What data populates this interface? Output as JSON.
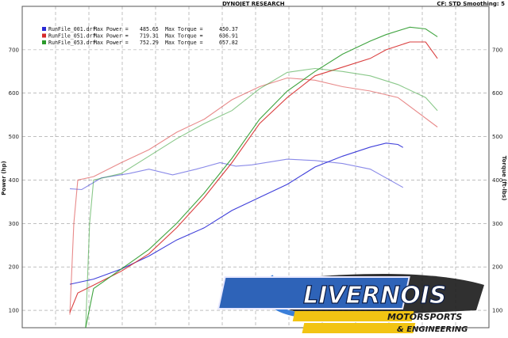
{
  "header": {
    "title": "DYNOJET RESEARCH",
    "right_text": "CF: STD  Smoothing: 5"
  },
  "logo": {
    "name": "LIVERNOIS",
    "line2": "MOTORSPORTS",
    "line3": "& ENGINEERING"
  },
  "chart_data": {
    "type": "line",
    "ylabel": "Power (hp)",
    "y2label": "Torque (ft-lbs)",
    "ylim": [
      60,
      800
    ],
    "y_ticks": [
      100,
      200,
      300,
      400,
      500,
      600,
      700
    ],
    "x_range": [
      0,
      1
    ],
    "grid": true,
    "legend_position": "top-left",
    "legend": [
      {
        "file": "RunFile_001.drf",
        "power_label": "Max Power =",
        "power": "485.65",
        "torque_label": "Max Torque =",
        "torque": "450.37",
        "color": "#2a2ad6"
      },
      {
        "file": "RunFile_051.drf",
        "power_label": "Max Power =",
        "power": "719.31",
        "torque_label": "Max Torque =",
        "torque": "636.91",
        "color": "#d62a2a"
      },
      {
        "file": "RunFile_053.drf",
        "power_label": "Max Power =",
        "power": "752.29",
        "torque_label": "Max Torque =",
        "torque": "657.82",
        "color": "#2a9a2a"
      }
    ],
    "series": [
      {
        "kind": "power",
        "run": "RunFile_001.drf",
        "color": "#2a2ad6",
        "x": [
          0.0,
          0.06,
          0.13,
          0.2,
          0.27,
          0.34,
          0.41,
          0.48,
          0.55,
          0.62,
          0.69,
          0.76,
          0.8,
          0.83,
          0.843
        ],
        "y": [
          160,
          172,
          195,
          225,
          262,
          290,
          330,
          360,
          390,
          430,
          455,
          476,
          485,
          482,
          475
        ]
      },
      {
        "kind": "torque",
        "run": "RunFile_001.drf",
        "color": "#2a2ad6",
        "x": [
          0.0,
          0.03,
          0.08,
          0.15,
          0.2,
          0.26,
          0.32,
          0.38,
          0.42,
          0.46,
          0.55,
          0.62,
          0.69,
          0.76,
          0.843
        ],
        "y": [
          380,
          378,
          405,
          415,
          425,
          412,
          425,
          440,
          432,
          435,
          448,
          445,
          438,
          425,
          383
        ]
      },
      {
        "kind": "power",
        "run": "RunFile_051.drf",
        "color": "#d62a2a",
        "x": [
          0.0,
          0.02,
          0.06,
          0.13,
          0.2,
          0.27,
          0.34,
          0.41,
          0.48,
          0.55,
          0.62,
          0.69,
          0.76,
          0.8,
          0.86,
          0.9,
          0.93
        ],
        "y": [
          95,
          140,
          158,
          190,
          230,
          290,
          360,
          440,
          530,
          590,
          640,
          660,
          680,
          700,
          718,
          718,
          680
        ]
      },
      {
        "kind": "torque",
        "run": "RunFile_051.drf",
        "color": "#d62a2a",
        "x": [
          0.0,
          0.01,
          0.02,
          0.06,
          0.13,
          0.2,
          0.27,
          0.34,
          0.41,
          0.48,
          0.55,
          0.62,
          0.69,
          0.76,
          0.83,
          0.93
        ],
        "y": [
          90,
          300,
          400,
          408,
          440,
          470,
          510,
          540,
          585,
          615,
          635,
          630,
          615,
          605,
          590,
          522
        ]
      },
      {
        "kind": "power",
        "run": "RunFile_053.drf",
        "color": "#2a9a2a",
        "x": [
          0.04,
          0.06,
          0.13,
          0.2,
          0.27,
          0.34,
          0.41,
          0.48,
          0.55,
          0.62,
          0.69,
          0.76,
          0.8,
          0.86,
          0.9,
          0.93
        ],
        "y": [
          60,
          150,
          195,
          240,
          300,
          370,
          450,
          540,
          605,
          650,
          690,
          720,
          735,
          752,
          748,
          730
        ]
      },
      {
        "kind": "torque",
        "run": "RunFile_053.drf",
        "color": "#2a9a2a",
        "x": [
          0.04,
          0.05,
          0.06,
          0.13,
          0.2,
          0.27,
          0.34,
          0.41,
          0.48,
          0.55,
          0.62,
          0.69,
          0.76,
          0.83,
          0.9,
          0.93
        ],
        "y": [
          60,
          300,
          400,
          415,
          455,
          495,
          530,
          560,
          610,
          648,
          657,
          650,
          640,
          620,
          590,
          560
        ]
      }
    ]
  }
}
